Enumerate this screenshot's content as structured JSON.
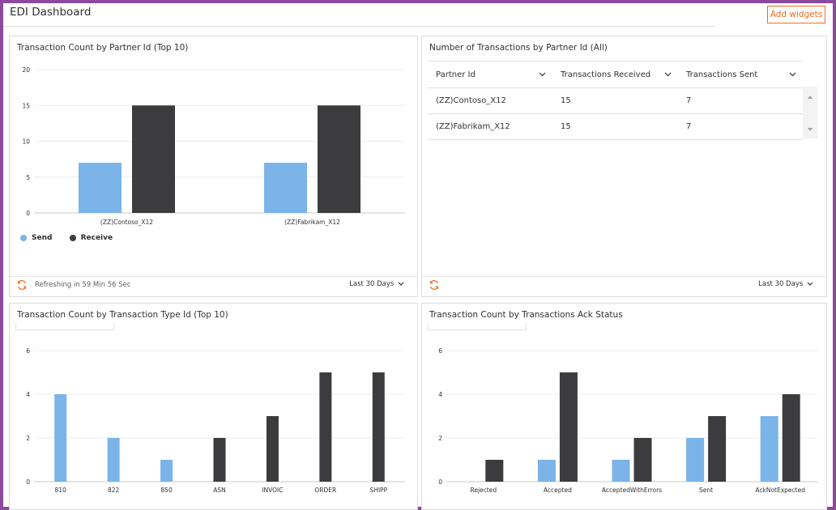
{
  "header": {
    "title": "EDI Dashboard",
    "add_widgets_label": "Add widgets"
  },
  "colors": {
    "send": "#7ab4e8",
    "receive": "#3c3c3e",
    "accent": "#f26b1d",
    "frame": "#8b4a9c"
  },
  "tiles": {
    "partner_chart": {
      "title": "Transaction Count by Partner Id (Top 10)",
      "refresh_text": "Refreshing in 59 Min 56 Sec",
      "range": "Last 30 Days",
      "legend": {
        "send": "Send",
        "receive": "Receive"
      }
    },
    "partner_table": {
      "title": "Number of Transactions by Partner Id (All)",
      "range": "Last 30 Days",
      "columns": [
        "Partner Id",
        "Transactions Received",
        "Transactions Sent"
      ],
      "rows": [
        [
          "(ZZ)Contoso_X12",
          "15",
          "7"
        ],
        [
          "(ZZ)Fabrikam_X12",
          "15",
          "7"
        ]
      ]
    },
    "type_chart": {
      "title": "Transaction Count by Transaction Type Id (Top 10)"
    },
    "ack_chart": {
      "title": "Transaction Count by Transactions Ack Status"
    }
  },
  "chart_data": [
    {
      "type": "bar",
      "title": "Transaction Count by Partner Id (Top 10)",
      "categories": [
        "(ZZ)Contoso_X12",
        "(ZZ)Fabrikam_X12"
      ],
      "series": [
        {
          "name": "Send",
          "values": [
            7,
            7
          ]
        },
        {
          "name": "Receive",
          "values": [
            15,
            15
          ]
        }
      ],
      "ylim": [
        0,
        20
      ],
      "yticks": [
        "0",
        "5",
        "10",
        "15",
        "20"
      ],
      "grid": true,
      "legend": "bottom-left"
    },
    {
      "type": "bar",
      "title": "Transaction Count by Transaction Type Id (Top 10)",
      "categories": [
        "810",
        "822",
        "850",
        "ASN",
        "INVOIC",
        "ORDER",
        "SHIPP"
      ],
      "series": [
        {
          "values": [
            4,
            2,
            1,
            0,
            0,
            0,
            0
          ]
        },
        {
          "values": [
            0,
            0,
            0,
            2,
            3,
            5,
            5
          ]
        }
      ],
      "ylim": [
        0,
        6
      ],
      "yticks": [
        "0",
        "2",
        "4",
        "6"
      ],
      "grid": true
    },
    {
      "type": "bar",
      "title": "Transaction Count by Transactions Ack Status",
      "categories": [
        "Rejected",
        "Accepted",
        "AcceptedWithErrors",
        "Sent",
        "AckNotExpected"
      ],
      "series": [
        {
          "values": [
            0,
            1,
            1,
            2,
            3
          ]
        },
        {
          "values": [
            1,
            5,
            2,
            3,
            4
          ]
        }
      ],
      "ylim": [
        0,
        6
      ],
      "yticks": [
        "0",
        "2",
        "4",
        "6"
      ],
      "grid": true
    }
  ]
}
